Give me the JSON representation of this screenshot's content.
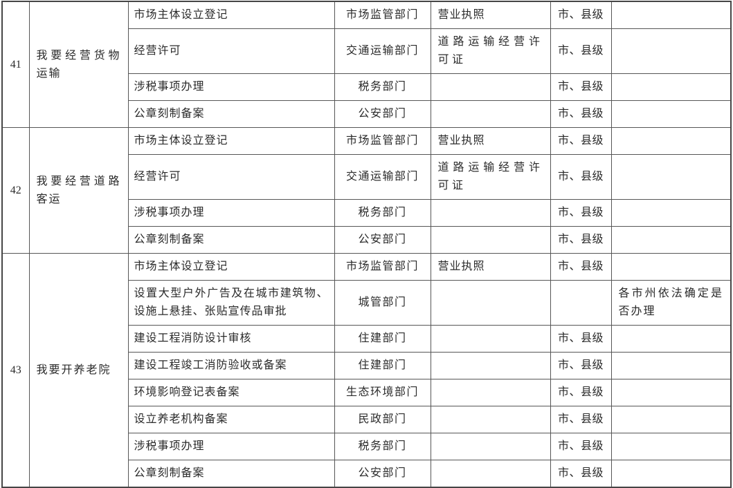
{
  "page": {
    "background": "#ffffff"
  },
  "colors": {
    "grid_line": "#555555",
    "grid_line_strong": "#454545",
    "text": "#2a2a2a"
  },
  "table": {
    "groups": [
      {
        "id": "41",
        "scenario": "我要经营货物运输",
        "items": [
          {
            "item": "市场主体设立登记",
            "dept": "市场监管部门",
            "result": "营业执照",
            "level": "市、县级",
            "note": ""
          },
          {
            "item": "经营许可",
            "dept": "交通运输部门",
            "result": "道路运输经营许可证",
            "level": "市、县级",
            "note": ""
          },
          {
            "item": "涉税事项办理",
            "dept": "税务部门",
            "result": "",
            "level": "市、县级",
            "note": ""
          },
          {
            "item": "公章刻制备案",
            "dept": "公安部门",
            "result": "",
            "level": "市、县级",
            "note": ""
          }
        ]
      },
      {
        "id": "42",
        "scenario": "我要经营道路客运",
        "items": [
          {
            "item": "市场主体设立登记",
            "dept": "市场监管部门",
            "result": "营业执照",
            "level": "市、县级",
            "note": ""
          },
          {
            "item": "经营许可",
            "dept": "交通运输部门",
            "result": "道路运输经营许可证",
            "level": "市、县级",
            "note": ""
          },
          {
            "item": "涉税事项办理",
            "dept": "税务部门",
            "result": "",
            "level": "市、县级",
            "note": ""
          },
          {
            "item": "公章刻制备案",
            "dept": "公安部门",
            "result": "",
            "level": "市、县级",
            "note": ""
          }
        ]
      },
      {
        "id": "43",
        "scenario": "我要开养老院",
        "items": [
          {
            "item": "市场主体设立登记",
            "dept": "市场监管部门",
            "result": "营业执照",
            "level": "市、县级",
            "note": ""
          },
          {
            "item": "设置大型户外广告及在城市建筑物、设施上悬挂、张贴宣传品审批",
            "dept": "城管部门",
            "result": "",
            "level": "",
            "note": "各市州依法确定是否办理"
          },
          {
            "item": "建设工程消防设计审核",
            "dept": "住建部门",
            "result": "",
            "level": "市、县级",
            "note": ""
          },
          {
            "item": "建设工程竣工消防验收或备案",
            "dept": "住建部门",
            "result": "",
            "level": "市、县级",
            "note": ""
          },
          {
            "item": "环境影响登记表备案",
            "dept": "生态环境部门",
            "result": "",
            "level": "市、县级",
            "note": ""
          },
          {
            "item": "设立养老机构备案",
            "dept": "民政部门",
            "result": "",
            "level": "市、县级",
            "note": ""
          },
          {
            "item": "涉税事项办理",
            "dept": "税务部门",
            "result": "",
            "level": "市、县级",
            "note": ""
          },
          {
            "item": "公章刻制备案",
            "dept": "公安部门",
            "result": "",
            "level": "市、县级",
            "note": ""
          }
        ]
      }
    ]
  }
}
